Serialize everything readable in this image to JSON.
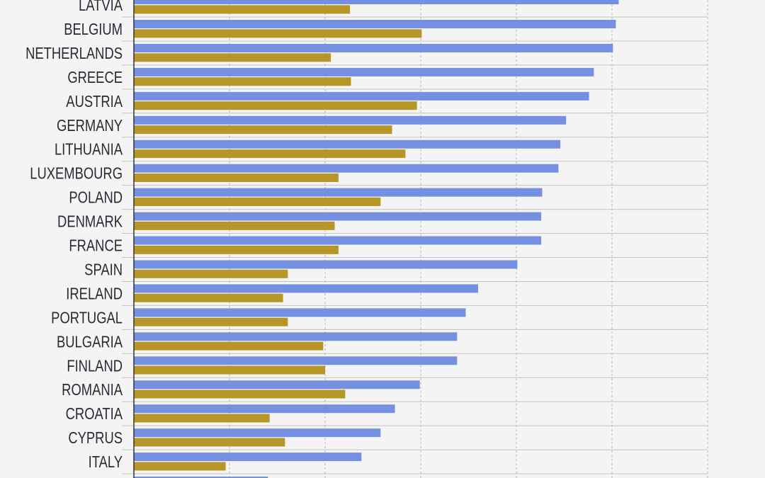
{
  "chart_data": {
    "type": "bar",
    "orientation": "horizontal",
    "title": "",
    "xlabel": "",
    "ylabel": "",
    "xlim": [
      0,
      60
    ],
    "grid": true,
    "legend": "none",
    "categories": [
      "LATVIA",
      "BELGIUM",
      "NETHERLANDS",
      "GREECE",
      "AUSTRIA",
      "GERMANY",
      "LITHUANIA",
      "LUXEMBOURG",
      "POLAND",
      "DENMARK",
      "FRANCE",
      "SPAIN",
      "IRELAND",
      "PORTUGAL",
      "BULGARIA",
      "FINLAND",
      "ROMANIA",
      "CROATIA",
      "CYPRUS",
      "ITALY",
      ""
    ],
    "series": [
      {
        "color": "#7590e0",
        "values": [
          50.7,
          50.4,
          50.1,
          48.1,
          47.6,
          45.2,
          44.6,
          44.4,
          42.7,
          42.6,
          42.6,
          40.1,
          36.0,
          34.7,
          33.8,
          33.8,
          29.9,
          27.3,
          25.8,
          23.8,
          14.0
        ]
      },
      {
        "color": "#b59626",
        "values": [
          22.6,
          30.1,
          20.6,
          22.7,
          29.6,
          27.0,
          28.4,
          21.4,
          25.8,
          21.0,
          21.4,
          16.1,
          15.6,
          16.1,
          19.8,
          20.0,
          22.1,
          14.2,
          15.8,
          9.6,
          null
        ]
      }
    ]
  }
}
